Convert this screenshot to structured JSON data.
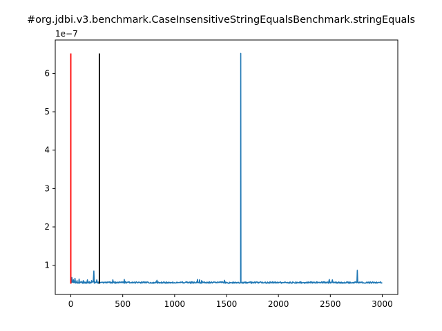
{
  "chart_data": {
    "type": "line",
    "title": "#org.jdbi.v3.benchmark.CaseInsensitiveStringEqualsBenchmark.stringEquals",
    "xlabel": "",
    "ylabel": "",
    "y_offset_label": "1e−7",
    "xlim": [
      -150,
      3150
    ],
    "ylim": [
      0.24,
      6.87
    ],
    "x_ticks": [
      0,
      500,
      1000,
      1500,
      2000,
      2500,
      3000
    ],
    "x_tick_labels": [
      "0",
      "500",
      "1000",
      "1500",
      "2000",
      "2500",
      "3000"
    ],
    "y_ticks": [
      1,
      2,
      3,
      4,
      5,
      6
    ],
    "y_tick_labels": [
      "1",
      "2",
      "3",
      "4",
      "5",
      "6"
    ],
    "grid": false,
    "series": [
      {
        "color": "#1f77b4",
        "baseline": 0.55,
        "x_range": [
          0,
          3000
        ],
        "points": [
          [
            0,
            0.56
          ],
          [
            10,
            0.68
          ],
          [
            25,
            0.62
          ],
          [
            40,
            0.66
          ],
          [
            60,
            0.6
          ],
          [
            80,
            0.64
          ],
          [
            100,
            0.58
          ],
          [
            120,
            0.6
          ],
          [
            140,
            0.56
          ],
          [
            160,
            0.62
          ],
          [
            180,
            0.57
          ],
          [
            200,
            0.6
          ],
          [
            222,
            0.85
          ],
          [
            230,
            0.58
          ],
          [
            250,
            0.62
          ],
          [
            270,
            0.57
          ],
          [
            300,
            0.56
          ],
          [
            360,
            0.55
          ],
          [
            405,
            0.62
          ],
          [
            420,
            0.56
          ],
          [
            480,
            0.55
          ],
          [
            515,
            0.63
          ],
          [
            525,
            0.58
          ],
          [
            540,
            0.55
          ],
          [
            600,
            0.55
          ],
          [
            700,
            0.55
          ],
          [
            830,
            0.61
          ],
          [
            850,
            0.55
          ],
          [
            1000,
            0.55
          ],
          [
            1100,
            0.55
          ],
          [
            1220,
            0.63
          ],
          [
            1240,
            0.62
          ],
          [
            1260,
            0.6
          ],
          [
            1280,
            0.55
          ],
          [
            1400,
            0.55
          ],
          [
            1480,
            0.61
          ],
          [
            1500,
            0.55
          ],
          [
            1600,
            0.55
          ],
          [
            1636,
            0.55
          ],
          [
            1637,
            6.52
          ],
          [
            1639,
            0.55
          ],
          [
            1700,
            0.55
          ],
          [
            2000,
            0.55
          ],
          [
            2300,
            0.55
          ],
          [
            2490,
            0.63
          ],
          [
            2520,
            0.62
          ],
          [
            2540,
            0.55
          ],
          [
            2700,
            0.55
          ],
          [
            2760,
            0.87
          ],
          [
            2770,
            0.56
          ],
          [
            2900,
            0.55
          ],
          [
            3000,
            0.55
          ]
        ]
      }
    ],
    "vertical_lines": [
      {
        "x": 0,
        "y": [
          0.52,
          6.52
        ],
        "color": "#ff0000"
      },
      {
        "x": 275,
        "y": [
          0.52,
          6.52
        ],
        "color": "#000000"
      }
    ]
  }
}
